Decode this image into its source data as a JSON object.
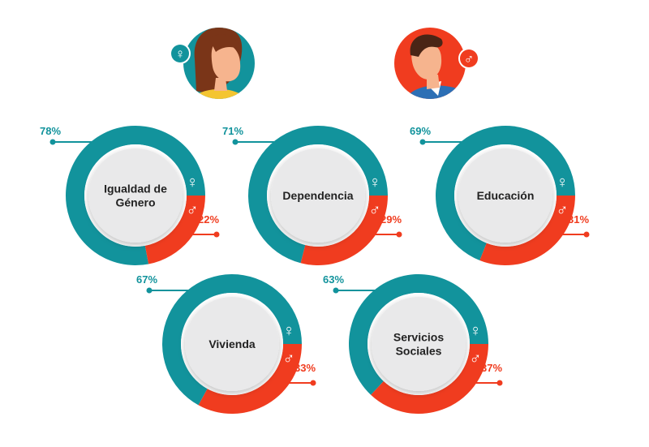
{
  "colors": {
    "female": "#12939c",
    "male": "#f03c1f",
    "center_fill": "#e9e9ea",
    "center_border": "#ffffff",
    "label": "#222222",
    "skin": "#f6b48e",
    "hair_female": "#7a3518",
    "hair_male": "#4a2516",
    "shirt_female": "#f4c531",
    "shirt_male": "#2c6fb5"
  },
  "icons": {
    "female_avatar": "woman-avatar-icon",
    "male_avatar": "man-avatar-icon",
    "female_symbol": "venus-symbol-icon",
    "male_symbol": "mars-symbol-icon"
  },
  "chart_data": [
    {
      "type": "pie",
      "categories": [
        "♀",
        "♂"
      ],
      "values": [
        78,
        22
      ],
      "labels": [
        "78%",
        "22%"
      ],
      "center_label": [
        "Igualdad de",
        "Género"
      ]
    },
    {
      "type": "pie",
      "categories": [
        "♀",
        "♂"
      ],
      "values": [
        71,
        29
      ],
      "labels": [
        "71%",
        "29%"
      ],
      "center_label": [
        "Dependencia"
      ]
    },
    {
      "type": "pie",
      "categories": [
        "♀",
        "♂"
      ],
      "values": [
        69,
        31
      ],
      "labels": [
        "69%",
        "31%"
      ],
      "center_label": [
        "Educación"
      ]
    },
    {
      "type": "pie",
      "categories": [
        "♀",
        "♂"
      ],
      "values": [
        67,
        33
      ],
      "labels": [
        "67%",
        "33%"
      ],
      "center_label": [
        "Vivienda"
      ]
    },
    {
      "type": "pie",
      "categories": [
        "♀",
        "♂"
      ],
      "values": [
        63,
        37
      ],
      "labels": [
        "63%",
        "37%"
      ],
      "center_label": [
        "Servicios",
        "Sociales"
      ]
    }
  ]
}
